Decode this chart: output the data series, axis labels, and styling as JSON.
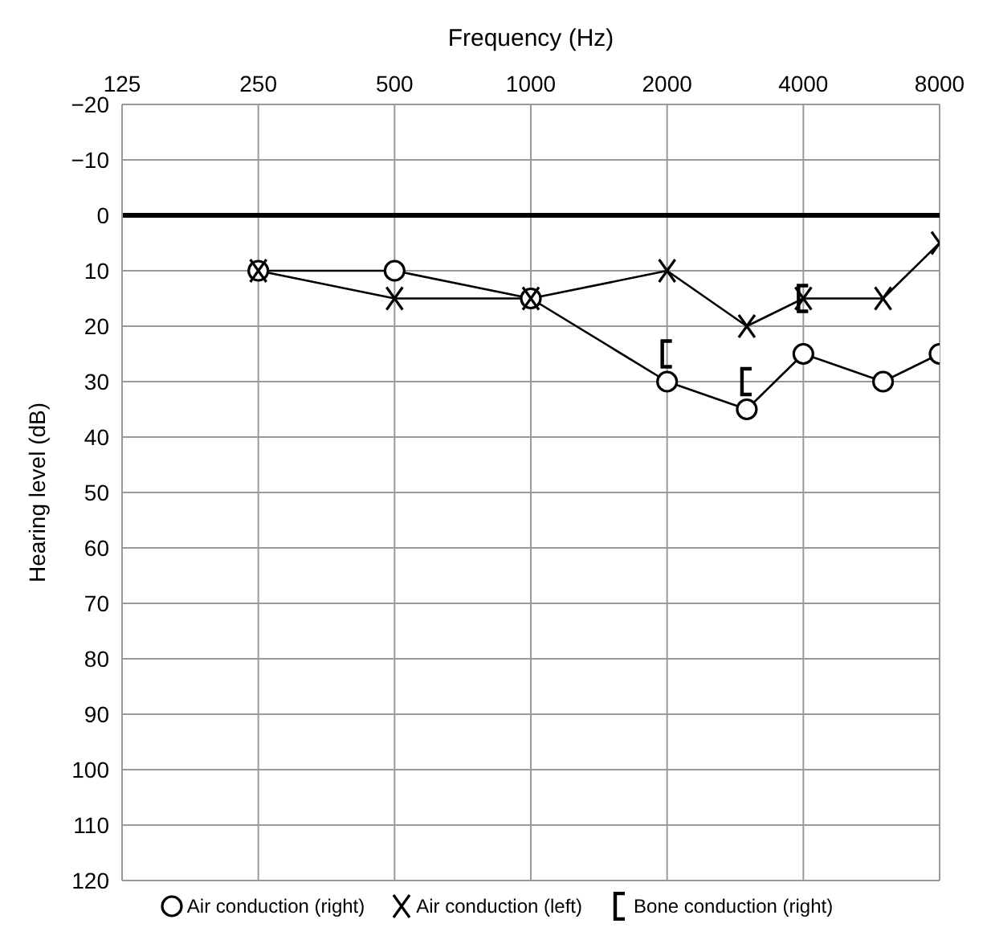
{
  "chart_data": {
    "type": "line",
    "xlabel": "Frequency (Hz)",
    "ylabel": "Hearing level (dB)",
    "log": "x",
    "xlim": [
      125,
      8000
    ],
    "xticks": [
      125,
      250,
      500,
      1000,
      2000,
      4000,
      8000
    ],
    "ylim": [
      120,
      -20
    ],
    "yticks": [
      {
        "value": -20,
        "label": "−20"
      },
      {
        "value": -10,
        "label": "−10"
      },
      0,
      10,
      20,
      30,
      40,
      50,
      60,
      70,
      80,
      90,
      100,
      110,
      120
    ],
    "grid": true,
    "legend": "bottom",
    "line_style": "solid",
    "ref_lines": [
      {
        "axis": "y",
        "value": 0,
        "color": "#000000"
      }
    ],
    "series": [
      {
        "name": "Air conduction (right)",
        "marker": "circle",
        "color": "#000000",
        "x": [
          250,
          500,
          1000,
          2000,
          3000,
          4000,
          6000,
          8000
        ],
        "values": [
          10,
          10,
          15,
          30,
          35,
          25,
          30,
          25
        ]
      },
      {
        "name": "Air conduction (left)",
        "marker": "cross",
        "color": "#000000",
        "x": [
          250,
          500,
          1000,
          2000,
          3000,
          4000,
          6000,
          8000
        ],
        "values": [
          10,
          15,
          15,
          10,
          20,
          15,
          15,
          5
        ]
      },
      {
        "name": "Bone conduction (right)",
        "type": "scatter",
        "color": "#000000",
        "x": [
          2000,
          3000,
          4000
        ],
        "values": [
          25,
          30,
          15
        ]
      }
    ]
  }
}
